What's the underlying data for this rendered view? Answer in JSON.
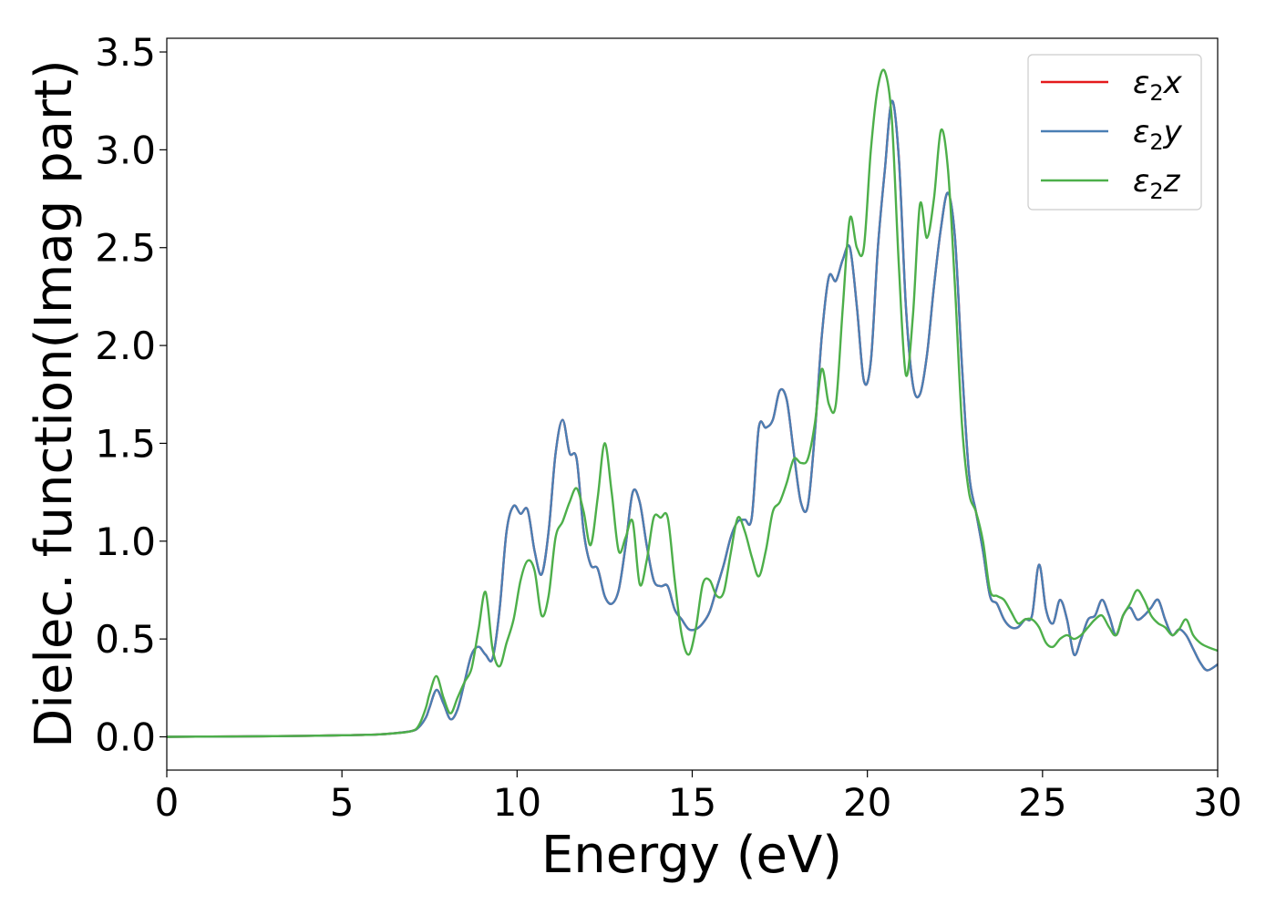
{
  "chart_data": {
    "type": "line",
    "xlabel": "Energy (eV)",
    "ylabel": "Dielec. function(Imag part)",
    "xlim": [
      0,
      30
    ],
    "ylim": [
      -0.17,
      3.57
    ],
    "xticks": [
      0,
      5,
      10,
      15,
      20,
      25,
      30
    ],
    "xtick_labels": [
      "0",
      "5",
      "10",
      "15",
      "20",
      "25",
      "30"
    ],
    "yticks": [
      0.0,
      0.5,
      1.0,
      1.5,
      2.0,
      2.5,
      3.0,
      3.5
    ],
    "ytick_labels": [
      "0.0",
      "0.5",
      "1.0",
      "1.5",
      "2.0",
      "2.5",
      "3.0",
      "3.5"
    ],
    "grid": false,
    "legend_position": "top-right",
    "series": [
      {
        "name": "ε2x",
        "legend_main": "ε",
        "legend_sub": "2",
        "legend_var": "x",
        "color": "#e41a1c",
        "x": [
          0,
          2,
          4,
          5,
          6,
          6.5,
          7,
          7.2,
          7.4,
          7.5,
          7.7,
          7.9,
          8.1,
          8.3,
          8.5,
          8.7,
          8.9,
          9.1,
          9.3,
          9.5,
          9.7,
          9.9,
          10.1,
          10.3,
          10.5,
          10.7,
          10.9,
          11.1,
          11.3,
          11.5,
          11.7,
          11.9,
          12.1,
          12.3,
          12.5,
          12.7,
          12.9,
          13.1,
          13.3,
          13.5,
          13.7,
          13.9,
          14.1,
          14.3,
          14.5,
          14.7,
          14.9,
          15.1,
          15.3,
          15.5,
          15.7,
          15.9,
          16.1,
          16.3,
          16.5,
          16.7,
          16.9,
          17.1,
          17.3,
          17.5,
          17.7,
          17.9,
          18.1,
          18.3,
          18.5,
          18.7,
          18.9,
          19.1,
          19.3,
          19.5,
          19.7,
          19.9,
          20.1,
          20.3,
          20.5,
          20.7,
          20.9,
          21.1,
          21.3,
          21.5,
          21.7,
          21.9,
          22.1,
          22.3,
          22.5,
          22.7,
          22.9,
          23.1,
          23.3,
          23.5,
          23.7,
          23.9,
          24.1,
          24.3,
          24.5,
          24.7,
          24.9,
          25.1,
          25.3,
          25.5,
          25.7,
          25.9,
          26.1,
          26.3,
          26.5,
          26.7,
          26.9,
          27.1,
          27.3,
          27.5,
          27.7,
          27.9,
          28.1,
          28.3,
          28.5,
          28.7,
          28.9,
          29.1,
          29.3,
          29.5,
          29.7,
          30
        ],
        "y": [
          0,
          0.002,
          0.005,
          0.008,
          0.012,
          0.018,
          0.03,
          0.05,
          0.1,
          0.15,
          0.24,
          0.17,
          0.09,
          0.14,
          0.28,
          0.42,
          0.46,
          0.42,
          0.4,
          0.65,
          1.05,
          1.18,
          1.14,
          1.16,
          0.95,
          0.83,
          1.05,
          1.45,
          1.62,
          1.45,
          1.42,
          1.05,
          0.88,
          0.86,
          0.72,
          0.68,
          0.75,
          0.98,
          1.25,
          1.2,
          0.98,
          0.8,
          0.77,
          0.77,
          0.65,
          0.6,
          0.55,
          0.55,
          0.58,
          0.64,
          0.76,
          0.88,
          1.02,
          1.1,
          1.11,
          1.12,
          1.58,
          1.58,
          1.62,
          1.77,
          1.72,
          1.45,
          1.2,
          1.18,
          1.55,
          2.05,
          2.35,
          2.33,
          2.44,
          2.5,
          2.2,
          1.82,
          1.92,
          2.5,
          2.9,
          3.25,
          2.95,
          2.2,
          1.8,
          1.75,
          1.95,
          2.3,
          2.6,
          2.78,
          2.55,
          1.9,
          1.35,
          1.15,
          0.95,
          0.72,
          0.68,
          0.6,
          0.56,
          0.56,
          0.6,
          0.62,
          0.88,
          0.65,
          0.58,
          0.7,
          0.6,
          0.42,
          0.5,
          0.6,
          0.62,
          0.7,
          0.62,
          0.52,
          0.62,
          0.66,
          0.6,
          0.62,
          0.66,
          0.7,
          0.6,
          0.52,
          0.55,
          0.52,
          0.45,
          0.38,
          0.34,
          0.37
        ]
      },
      {
        "name": "ε2y",
        "legend_main": "ε",
        "legend_sub": "2",
        "legend_var": "y",
        "color": "#4a7fb4",
        "x": [
          0,
          2,
          4,
          5,
          6,
          6.5,
          7,
          7.2,
          7.4,
          7.5,
          7.7,
          7.9,
          8.1,
          8.3,
          8.5,
          8.7,
          8.9,
          9.1,
          9.3,
          9.5,
          9.7,
          9.9,
          10.1,
          10.3,
          10.5,
          10.7,
          10.9,
          11.1,
          11.3,
          11.5,
          11.7,
          11.9,
          12.1,
          12.3,
          12.5,
          12.7,
          12.9,
          13.1,
          13.3,
          13.5,
          13.7,
          13.9,
          14.1,
          14.3,
          14.5,
          14.7,
          14.9,
          15.1,
          15.3,
          15.5,
          15.7,
          15.9,
          16.1,
          16.3,
          16.5,
          16.7,
          16.9,
          17.1,
          17.3,
          17.5,
          17.7,
          17.9,
          18.1,
          18.3,
          18.5,
          18.7,
          18.9,
          19.1,
          19.3,
          19.5,
          19.7,
          19.9,
          20.1,
          20.3,
          20.5,
          20.7,
          20.9,
          21.1,
          21.3,
          21.5,
          21.7,
          21.9,
          22.1,
          22.3,
          22.5,
          22.7,
          22.9,
          23.1,
          23.3,
          23.5,
          23.7,
          23.9,
          24.1,
          24.3,
          24.5,
          24.7,
          24.9,
          25.1,
          25.3,
          25.5,
          25.7,
          25.9,
          26.1,
          26.3,
          26.5,
          26.7,
          26.9,
          27.1,
          27.3,
          27.5,
          27.7,
          27.9,
          28.1,
          28.3,
          28.5,
          28.7,
          28.9,
          29.1,
          29.3,
          29.5,
          29.7,
          30
        ],
        "y": [
          0,
          0.002,
          0.005,
          0.008,
          0.012,
          0.018,
          0.03,
          0.05,
          0.1,
          0.15,
          0.24,
          0.17,
          0.09,
          0.14,
          0.28,
          0.42,
          0.46,
          0.42,
          0.4,
          0.65,
          1.05,
          1.18,
          1.14,
          1.16,
          0.95,
          0.83,
          1.05,
          1.45,
          1.62,
          1.45,
          1.42,
          1.05,
          0.88,
          0.86,
          0.72,
          0.68,
          0.75,
          0.98,
          1.25,
          1.2,
          0.98,
          0.8,
          0.77,
          0.77,
          0.65,
          0.6,
          0.55,
          0.55,
          0.58,
          0.64,
          0.76,
          0.88,
          1.02,
          1.1,
          1.11,
          1.12,
          1.58,
          1.58,
          1.62,
          1.77,
          1.72,
          1.45,
          1.2,
          1.18,
          1.55,
          2.05,
          2.35,
          2.33,
          2.44,
          2.5,
          2.2,
          1.82,
          1.92,
          2.5,
          2.9,
          3.25,
          2.95,
          2.2,
          1.8,
          1.75,
          1.95,
          2.3,
          2.6,
          2.78,
          2.55,
          1.9,
          1.35,
          1.15,
          0.95,
          0.72,
          0.68,
          0.6,
          0.56,
          0.56,
          0.6,
          0.62,
          0.88,
          0.65,
          0.58,
          0.7,
          0.6,
          0.42,
          0.5,
          0.6,
          0.62,
          0.7,
          0.62,
          0.52,
          0.62,
          0.66,
          0.6,
          0.62,
          0.66,
          0.7,
          0.6,
          0.52,
          0.55,
          0.52,
          0.45,
          0.38,
          0.34,
          0.37
        ]
      },
      {
        "name": "ε2z",
        "legend_main": "ε",
        "legend_sub": "2",
        "legend_var": "z",
        "color": "#4daf4a",
        "x": [
          0,
          2,
          4,
          5,
          6,
          6.5,
          7,
          7.2,
          7.4,
          7.5,
          7.7,
          7.9,
          8.1,
          8.3,
          8.5,
          8.7,
          8.9,
          9.1,
          9.3,
          9.5,
          9.7,
          9.9,
          10.1,
          10.3,
          10.5,
          10.7,
          10.9,
          11.1,
          11.3,
          11.5,
          11.7,
          11.9,
          12.1,
          12.3,
          12.5,
          12.7,
          12.9,
          13.1,
          13.3,
          13.5,
          13.7,
          13.9,
          14.1,
          14.3,
          14.5,
          14.7,
          14.9,
          15.1,
          15.3,
          15.5,
          15.7,
          15.9,
          16.1,
          16.3,
          16.5,
          16.7,
          16.9,
          17.1,
          17.3,
          17.5,
          17.7,
          17.9,
          18.1,
          18.3,
          18.5,
          18.7,
          18.9,
          19.1,
          19.3,
          19.5,
          19.7,
          19.9,
          20.1,
          20.3,
          20.5,
          20.7,
          20.9,
          21.1,
          21.3,
          21.5,
          21.7,
          21.9,
          22.1,
          22.3,
          22.5,
          22.7,
          22.9,
          23.1,
          23.3,
          23.5,
          23.7,
          23.9,
          24.1,
          24.3,
          24.5,
          24.7,
          24.9,
          25.1,
          25.3,
          25.5,
          25.7,
          25.9,
          26.1,
          26.3,
          26.5,
          26.7,
          26.9,
          27.1,
          27.3,
          27.5,
          27.7,
          27.9,
          28.1,
          28.3,
          28.5,
          28.7,
          28.9,
          29.1,
          29.3,
          29.5,
          29.7,
          30
        ],
        "y": [
          0,
          0.002,
          0.005,
          0.008,
          0.012,
          0.018,
          0.03,
          0.06,
          0.15,
          0.22,
          0.31,
          0.2,
          0.12,
          0.2,
          0.28,
          0.35,
          0.55,
          0.74,
          0.45,
          0.36,
          0.48,
          0.6,
          0.8,
          0.9,
          0.85,
          0.62,
          0.72,
          1.02,
          1.1,
          1.2,
          1.27,
          1.15,
          0.98,
          1.22,
          1.5,
          1.25,
          0.95,
          1.02,
          1.1,
          0.78,
          0.9,
          1.12,
          1.12,
          1.12,
          0.8,
          0.52,
          0.42,
          0.55,
          0.78,
          0.8,
          0.72,
          0.74,
          0.94,
          1.12,
          1.05,
          0.92,
          0.82,
          0.95,
          1.15,
          1.2,
          1.3,
          1.42,
          1.4,
          1.42,
          1.6,
          1.88,
          1.7,
          1.7,
          2.2,
          2.65,
          2.5,
          2.5,
          3.0,
          3.32,
          3.4,
          3.15,
          2.4,
          1.85,
          2.15,
          2.72,
          2.55,
          2.75,
          3.1,
          2.9,
          2.3,
          1.6,
          1.25,
          1.15,
          1.0,
          0.75,
          0.72,
          0.7,
          0.64,
          0.58,
          0.6,
          0.6,
          0.56,
          0.48,
          0.46,
          0.5,
          0.52,
          0.5,
          0.52,
          0.56,
          0.6,
          0.62,
          0.56,
          0.52,
          0.62,
          0.68,
          0.75,
          0.7,
          0.62,
          0.58,
          0.56,
          0.52,
          0.55,
          0.6,
          0.52,
          0.48,
          0.46,
          0.44
        ]
      }
    ]
  }
}
